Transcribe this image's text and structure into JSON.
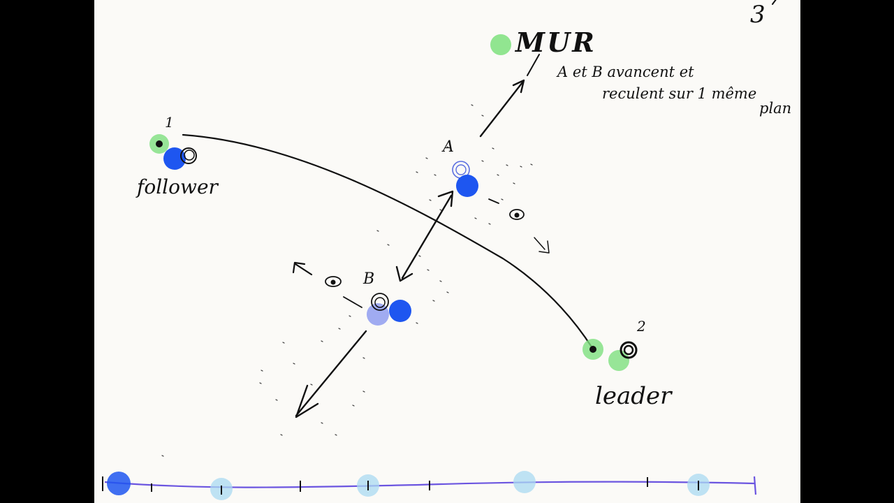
{
  "page_number": "3",
  "labels": {
    "wall": "MUR",
    "note_line1": "A et B avancent et",
    "note_line2": "reculent sur 1 même",
    "note_line3": "plan",
    "point_1": "1",
    "point_2": "2",
    "point_a": "A",
    "point_b": "B",
    "follower": "follower",
    "leader": "leader"
  },
  "colors": {
    "board": "#fbfaf7",
    "ink": "#111111",
    "blue": "#1e56f0",
    "light_blue": "#8f9cf0",
    "green": "#7ee07e",
    "timeline": "#6b55e0",
    "timeline_marker": "#a9d9f2"
  },
  "timeline": {
    "tick_count": 8,
    "markers": 5,
    "playhead": 0
  }
}
